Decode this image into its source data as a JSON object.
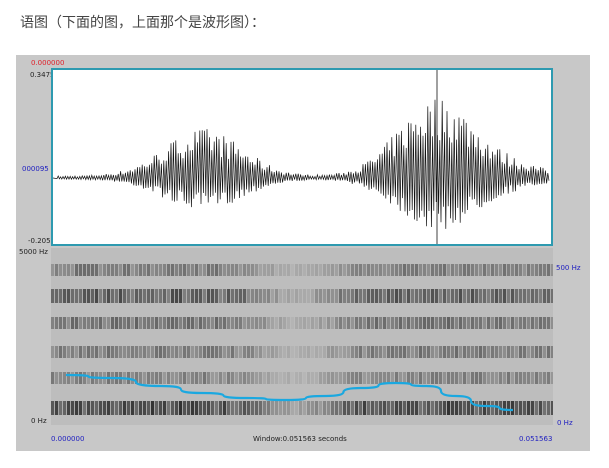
{
  "caption": "语图（下面的图，上面那个是波形图）：",
  "waveform": {
    "top_time": "0.000000",
    "max_label": "0.3475",
    "zero_label": "000095",
    "min_label": "-0.2050"
  },
  "spectrogram": {
    "freq_top_left": "5000 Hz",
    "freq_bottom_left": "0 Hz",
    "freq_top_right": "500 Hz",
    "freq_bottom_right": "0 Hz"
  },
  "footer": {
    "start_time": "0.000000",
    "window_label": "Window:0.051563 seconds",
    "end_time": "0.051563"
  },
  "colors": {
    "frame": "#2e9ab0",
    "pitch_contour": "#1aa8e0",
    "red_label": "#e0202a",
    "blue_label": "#2020c0"
  }
}
